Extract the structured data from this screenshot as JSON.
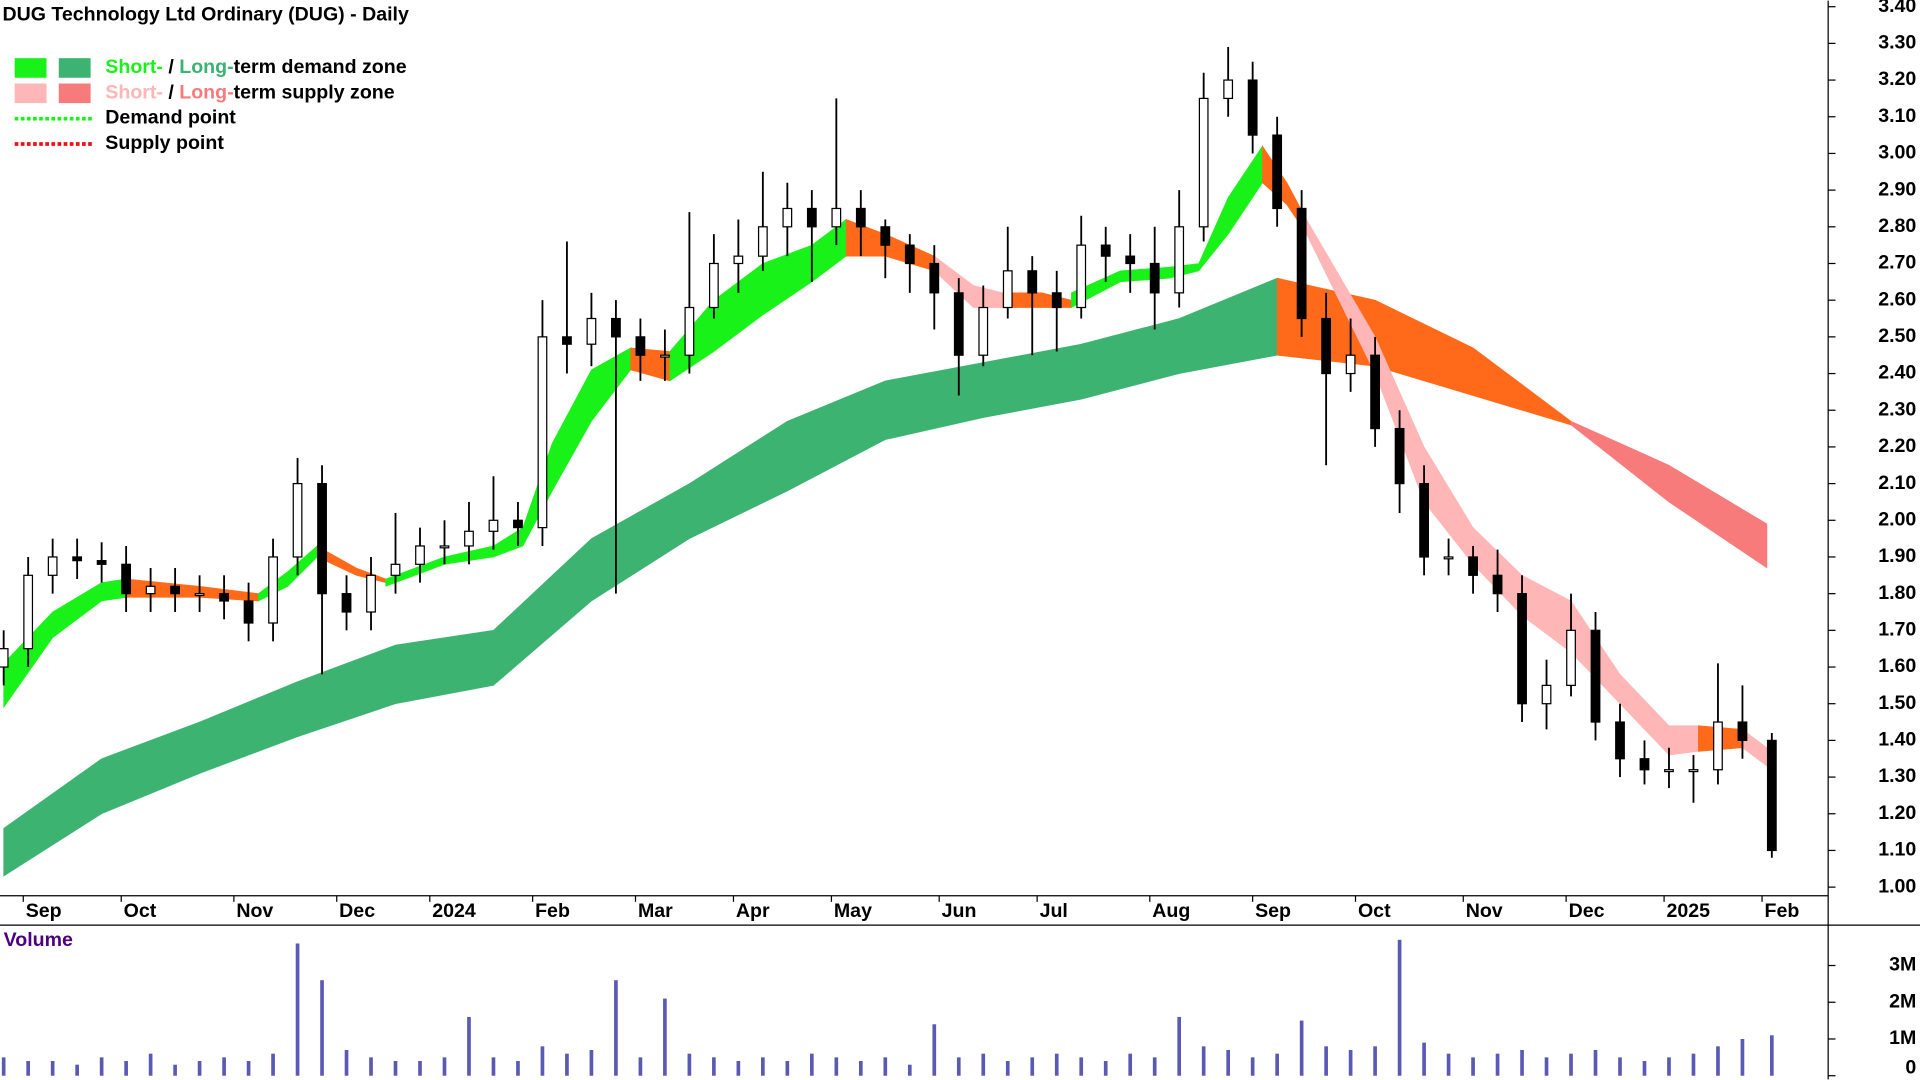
{
  "chart_data": {
    "type": "candlestick",
    "title": "DUG Technology Ltd Ordinary (DUG) - Daily",
    "xlim": [
      -0.75,
      372.5
    ],
    "ylim": [
      0.9766,
      3.4166
    ],
    "xticks": [
      {
        "value": 4,
        "label": "Sep"
      },
      {
        "value": 24,
        "label": "Oct"
      },
      {
        "value": 47,
        "label": "Nov"
      },
      {
        "value": 68,
        "label": "Dec"
      },
      {
        "value": 87,
        "label": "2024"
      },
      {
        "value": 108,
        "label": "Feb"
      },
      {
        "value": 129,
        "label": "Mar"
      },
      {
        "value": 149,
        "label": "Apr"
      },
      {
        "value": 169,
        "label": "May"
      },
      {
        "value": 191,
        "label": "Jun"
      },
      {
        "value": 211,
        "label": "Jul"
      },
      {
        "value": 234,
        "label": "Aug"
      },
      {
        "value": 255,
        "label": "Sep"
      },
      {
        "value": 276,
        "label": "Oct"
      },
      {
        "value": 298,
        "label": "Nov"
      },
      {
        "value": 319,
        "label": "Dec"
      },
      {
        "value": 339,
        "label": "2025"
      },
      {
        "value": 359,
        "label": "Feb"
      }
    ],
    "yticks": [
      {
        "value": 1.0,
        "label": "1.00"
      },
      {
        "value": 1.1,
        "label": "1.10"
      },
      {
        "value": 1.2,
        "label": "1.20"
      },
      {
        "value": 1.3,
        "label": "1.30"
      },
      {
        "value": 1.4,
        "label": "1.40"
      },
      {
        "value": 1.5,
        "label": "1.50"
      },
      {
        "value": 1.6,
        "label": "1.60"
      },
      {
        "value": 1.7,
        "label": "1.70"
      },
      {
        "value": 1.8,
        "label": "1.80"
      },
      {
        "value": 1.9,
        "label": "1.90"
      },
      {
        "value": 2.0,
        "label": "2.00"
      },
      {
        "value": 2.1,
        "label": "2.10"
      },
      {
        "value": 2.2,
        "label": "2.20"
      },
      {
        "value": 2.3,
        "label": "2.30"
      },
      {
        "value": 2.4,
        "label": "2.40"
      },
      {
        "value": 2.5,
        "label": "2.50"
      },
      {
        "value": 2.6,
        "label": "2.60"
      },
      {
        "value": 2.7,
        "label": "2.70"
      },
      {
        "value": 2.8,
        "label": "2.80"
      },
      {
        "value": 2.9,
        "label": "2.90"
      },
      {
        "value": 3.0,
        "label": "3.00"
      },
      {
        "value": 3.1,
        "label": "3.10"
      },
      {
        "value": 3.2,
        "label": "3.20"
      },
      {
        "value": 3.3,
        "label": "3.30"
      },
      {
        "value": 3.4,
        "label": "3.40"
      }
    ],
    "legend": [
      {
        "swatches": [
          "#19f219",
          "#3cb371"
        ],
        "parts": [
          {
            "text": "Short-",
            "color": "#19f219"
          },
          {
            "text": " / ",
            "color": "#000000"
          },
          {
            "text": "Long-",
            "color": "#3cb371"
          },
          {
            "text": "term demand zone",
            "color": "#000000"
          }
        ]
      },
      {
        "swatches": [
          "#ffb6b6",
          "#f77b7b"
        ],
        "parts": [
          {
            "text": "Short-",
            "color": "#ffb6b6"
          },
          {
            "text": " / ",
            "color": "#000000"
          },
          {
            "text": "Long-",
            "color": "#f77b7b"
          },
          {
            "text": "term supply zone",
            "color": "#000000"
          }
        ]
      },
      {
        "dotted": "#19f219",
        "parts": [
          {
            "text": "Demand point",
            "color": "#000000"
          }
        ]
      },
      {
        "dotted": "#ee1111",
        "parts": [
          {
            "text": "Supply point",
            "color": "#000000"
          }
        ]
      }
    ],
    "zones": [
      {
        "color": "#3cb371",
        "x": [
          0,
          20,
          40,
          60,
          80,
          100,
          120,
          140,
          160,
          180,
          200,
          220,
          240,
          260
        ],
        "upper": [
          1.16,
          1.35,
          1.45,
          1.56,
          1.66,
          1.7,
          1.95,
          2.1,
          2.27,
          2.38,
          2.43,
          2.48,
          2.55,
          2.66
        ],
        "lower": [
          1.03,
          1.2,
          1.31,
          1.41,
          1.5,
          1.55,
          1.78,
          1.95,
          2.08,
          2.22,
          2.28,
          2.33,
          2.4,
          2.45
        ]
      },
      {
        "color": "#ff6a1a",
        "x": [
          260,
          280,
          300,
          320
        ],
        "upper": [
          2.66,
          2.6,
          2.47,
          2.27
        ],
        "lower": [
          2.45,
          2.42,
          2.34,
          2.26
        ]
      },
      {
        "color": "#f77b7b",
        "x": [
          320,
          340,
          360
        ],
        "upper": [
          2.27,
          2.15,
          1.99
        ],
        "lower": [
          2.26,
          2.05,
          1.87
        ]
      },
      {
        "color": "#19f219",
        "x": [
          0,
          10,
          20,
          25
        ],
        "upper": [
          1.61,
          1.75,
          1.83,
          1.84
        ],
        "lower": [
          1.49,
          1.68,
          1.78,
          1.79
        ]
      },
      {
        "color": "#ff6a1a",
        "x": [
          25,
          40,
          52
        ],
        "upper": [
          1.84,
          1.82,
          1.8
        ],
        "lower": [
          1.79,
          1.79,
          1.78
        ]
      },
      {
        "color": "#19f219",
        "x": [
          52,
          58,
          64
        ],
        "upper": [
          1.8,
          1.86,
          1.93
        ],
        "lower": [
          1.78,
          1.82,
          1.9
        ]
      },
      {
        "color": "#ff6a1a",
        "x": [
          64,
          72,
          78
        ],
        "upper": [
          1.93,
          1.87,
          1.84
        ],
        "lower": [
          1.9,
          1.85,
          1.83
        ]
      },
      {
        "color": "#19f219",
        "x": [
          78,
          90,
          100,
          106,
          112,
          120,
          128
        ],
        "upper": [
          1.84,
          1.9,
          1.93,
          1.98,
          2.21,
          2.41,
          2.47
        ],
        "lower": [
          1.82,
          1.88,
          1.9,
          1.93,
          2.08,
          2.27,
          2.41
        ]
      },
      {
        "color": "#ff6a1a",
        "x": [
          128,
          136
        ],
        "upper": [
          2.47,
          2.46
        ],
        "lower": [
          2.41,
          2.38
        ]
      },
      {
        "color": "#19f219",
        "x": [
          136,
          145,
          155,
          165,
          172
        ],
        "upper": [
          2.46,
          2.6,
          2.7,
          2.75,
          2.82
        ],
        "lower": [
          2.38,
          2.46,
          2.56,
          2.65,
          2.72
        ]
      },
      {
        "color": "#ff6a1a",
        "x": [
          172,
          180,
          190
        ],
        "upper": [
          2.82,
          2.78,
          2.72
        ],
        "lower": [
          2.72,
          2.72,
          2.68
        ]
      },
      {
        "color": "#ffb6b6",
        "x": [
          190,
          198,
          204
        ],
        "upper": [
          2.72,
          2.64,
          2.62
        ],
        "lower": [
          2.68,
          2.58,
          2.58
        ]
      },
      {
        "color": "#ff6a1a",
        "x": [
          204,
          212,
          218
        ],
        "upper": [
          2.62,
          2.62,
          2.6
        ],
        "lower": [
          2.58,
          2.58,
          2.58
        ]
      },
      {
        "color": "#19f219",
        "x": [
          218,
          228,
          238,
          244,
          250,
          257
        ],
        "upper": [
          2.62,
          2.68,
          2.69,
          2.7,
          2.88,
          3.02
        ],
        "lower": [
          2.58,
          2.65,
          2.66,
          2.68,
          2.78,
          2.92
        ]
      },
      {
        "color": "#ff6a1a",
        "x": [
          257,
          262,
          266
        ],
        "upper": [
          3.02,
          2.92,
          2.82
        ],
        "lower": [
          2.92,
          2.86,
          2.78
        ]
      },
      {
        "color": "#ffb6b6",
        "x": [
          266,
          280,
          290,
          300,
          310,
          320,
          330,
          340,
          346
        ],
        "upper": [
          2.82,
          2.5,
          2.2,
          1.98,
          1.85,
          1.78,
          1.58,
          1.44,
          1.44
        ],
        "lower": [
          2.78,
          2.4,
          2.05,
          1.88,
          1.74,
          1.64,
          1.5,
          1.36,
          1.37
        ]
      },
      {
        "color": "#ff6a1a",
        "x": [
          346,
          355
        ],
        "upper": [
          1.44,
          1.43
        ],
        "lower": [
          1.37,
          1.38
        ]
      },
      {
        "color": "#ffb6b6",
        "x": [
          355,
          361
        ],
        "upper": [
          1.43,
          1.37
        ],
        "lower": [
          1.38,
          1.32
        ]
      }
    ],
    "x": [
      0,
      5,
      10,
      15,
      20,
      25,
      30,
      35,
      40,
      45,
      50,
      55,
      60,
      65,
      70,
      75,
      80,
      85,
      90,
      95,
      100,
      105,
      110,
      115,
      120,
      125,
      130,
      135,
      140,
      145,
      150,
      155,
      160,
      165,
      170,
      175,
      180,
      185,
      190,
      195,
      200,
      205,
      210,
      215,
      220,
      225,
      230,
      235,
      240,
      245,
      250,
      255,
      260,
      265,
      270,
      275,
      280,
      285,
      290,
      295,
      300,
      305,
      310,
      315,
      320,
      325,
      330,
      335,
      340,
      345,
      350,
      355,
      361
    ],
    "open": [
      1.6,
      1.65,
      1.85,
      1.9,
      1.89,
      1.88,
      1.8,
      1.82,
      1.8,
      1.8,
      1.78,
      1.72,
      1.9,
      2.1,
      1.8,
      1.75,
      1.85,
      1.88,
      1.93,
      1.93,
      1.97,
      2.0,
      1.98,
      2.5,
      2.48,
      2.55,
      2.5,
      2.45,
      2.45,
      2.58,
      2.7,
      2.72,
      2.8,
      2.85,
      2.8,
      2.85,
      2.8,
      2.75,
      2.7,
      2.62,
      2.45,
      2.58,
      2.68,
      2.62,
      2.58,
      2.75,
      2.72,
      2.7,
      2.62,
      2.8,
      3.15,
      3.2,
      3.05,
      2.85,
      2.55,
      2.4,
      2.45,
      2.25,
      2.1,
      1.9,
      1.9,
      1.85,
      1.8,
      1.5,
      1.55,
      1.7,
      1.45,
      1.35,
      1.32,
      1.32,
      1.32,
      1.45,
      1.4
    ],
    "high": [
      1.7,
      1.9,
      1.95,
      1.95,
      1.94,
      1.93,
      1.87,
      1.87,
      1.85,
      1.85,
      1.83,
      1.95,
      2.17,
      2.15,
      1.85,
      1.9,
      2.02,
      1.98,
      2.0,
      2.05,
      2.12,
      2.05,
      2.6,
      2.76,
      2.62,
      2.6,
      2.55,
      2.52,
      2.84,
      2.78,
      2.82,
      2.95,
      2.92,
      2.9,
      3.15,
      2.9,
      2.82,
      2.78,
      2.75,
      2.66,
      2.64,
      2.8,
      2.72,
      2.68,
      2.83,
      2.8,
      2.78,
      2.8,
      2.9,
      3.22,
      3.29,
      3.25,
      3.1,
      2.9,
      2.62,
      2.55,
      2.5,
      2.3,
      2.15,
      1.95,
      1.93,
      1.92,
      1.85,
      1.62,
      1.8,
      1.75,
      1.5,
      1.4,
      1.38,
      1.36,
      1.61,
      1.55,
      1.42
    ],
    "low": [
      1.55,
      1.6,
      1.8,
      1.84,
      1.83,
      1.75,
      1.75,
      1.75,
      1.75,
      1.73,
      1.67,
      1.67,
      1.85,
      1.58,
      1.7,
      1.7,
      1.8,
      1.83,
      1.88,
      1.88,
      1.92,
      1.93,
      1.93,
      2.4,
      2.42,
      1.8,
      2.38,
      2.38,
      2.4,
      2.55,
      2.62,
      2.68,
      2.72,
      2.65,
      2.75,
      2.72,
      2.66,
      2.62,
      2.52,
      2.34,
      2.42,
      2.55,
      2.45,
      2.46,
      2.55,
      2.65,
      2.62,
      2.52,
      2.58,
      2.76,
      3.1,
      3.0,
      2.8,
      2.5,
      2.15,
      2.35,
      2.2,
      2.02,
      1.85,
      1.85,
      1.8,
      1.75,
      1.45,
      1.43,
      1.52,
      1.4,
      1.3,
      1.28,
      1.27,
      1.23,
      1.28,
      1.35,
      1.08
    ],
    "close": [
      1.65,
      1.85,
      1.9,
      1.89,
      1.88,
      1.8,
      1.82,
      1.8,
      1.8,
      1.78,
      1.72,
      1.9,
      2.1,
      1.8,
      1.75,
      1.85,
      1.88,
      1.93,
      1.93,
      1.97,
      2.0,
      1.98,
      2.5,
      2.48,
      2.55,
      2.5,
      2.45,
      2.45,
      2.58,
      2.7,
      2.72,
      2.8,
      2.85,
      2.8,
      2.85,
      2.8,
      2.75,
      2.7,
      2.62,
      2.45,
      2.58,
      2.68,
      2.62,
      2.58,
      2.75,
      2.72,
      2.7,
      2.62,
      2.8,
      3.15,
      3.2,
      3.05,
      2.85,
      2.55,
      2.4,
      2.45,
      2.25,
      2.1,
      1.9,
      1.9,
      1.85,
      1.8,
      1.5,
      1.55,
      1.7,
      1.45,
      1.35,
      1.32,
      1.32,
      1.32,
      1.45,
      1.4,
      1.1
    ],
    "volume_label": "Volume",
    "volume_color": "#5a5ab4",
    "volume_ylim": [
      0,
      4000000
    ],
    "volume_yticks": [
      0,
      {
        "value": 1000000,
        "label": "1M"
      },
      {
        "value": 2000000,
        "label": "2M"
      },
      {
        "value": 3000000,
        "label": "3M"
      }
    ],
    "volume": [
      500000,
      400000,
      400000,
      300000,
      500000,
      400000,
      600000,
      300000,
      400000,
      500000,
      400000,
      600000,
      3600000,
      2600000,
      700000,
      500000,
      400000,
      400000,
      500000,
      1600000,
      500000,
      400000,
      800000,
      600000,
      700000,
      2600000,
      500000,
      2100000,
      600000,
      500000,
      400000,
      500000,
      400000,
      600000,
      500000,
      400000,
      500000,
      300000,
      1400000,
      500000,
      600000,
      400000,
      500000,
      600000,
      500000,
      400000,
      600000,
      500000,
      1600000,
      800000,
      700000,
      500000,
      600000,
      1500000,
      800000,
      700000,
      800000,
      3700000,
      900000,
      600000,
      500000,
      600000,
      700000,
      500000,
      600000,
      700000,
      500000,
      400000,
      500000,
      600000,
      800000,
      1000000,
      1100000
    ]
  }
}
